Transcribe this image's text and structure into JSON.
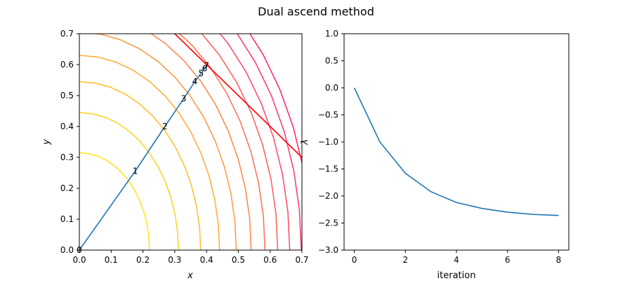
{
  "figure": {
    "title": "Dual ascend method"
  },
  "chart_data": [
    {
      "type": "line",
      "title": "",
      "xlabel": "x",
      "ylabel": "y",
      "xlim": [
        0,
        0.7
      ],
      "ylim": [
        0,
        0.7
      ],
      "xticks": [
        "0.0",
        "0.1",
        "0.2",
        "0.3",
        "0.4",
        "0.5",
        "0.6",
        "0.7"
      ],
      "yticks": [
        "0.0",
        "0.1",
        "0.2",
        "0.3",
        "0.4",
        "0.5",
        "0.6",
        "0.7"
      ],
      "grid": false,
      "contours": {
        "colormap": "autumn_r",
        "levels": [
          0.315,
          0.445,
          0.545,
          0.63,
          0.705,
          0.772,
          0.834,
          0.891,
          0.945,
          0.997,
          1.04
        ]
      },
      "constraint_line": {
        "color": "#ff0000",
        "points": [
          [
            0.3,
            0.7
          ],
          [
            0.7,
            0.3
          ]
        ]
      },
      "series": [
        {
          "color": "#1f77b4",
          "points": [
            [
              0.0,
              0.0
            ],
            [
              0.176,
              0.256
            ],
            [
              0.269,
              0.4
            ],
            [
              0.328,
              0.49
            ],
            [
              0.363,
              0.545
            ],
            [
              0.383,
              0.572
            ],
            [
              0.394,
              0.588
            ],
            [
              0.4,
              0.597
            ]
          ],
          "labels": [
            "0",
            "1",
            "2",
            "3",
            "4",
            "5",
            "6",
            "7"
          ]
        }
      ]
    },
    {
      "type": "line",
      "title": "",
      "xlabel": "iteration",
      "ylabel": "λ",
      "xlim": [
        -0.4,
        8.4
      ],
      "ylim": [
        -3.0,
        1.0
      ],
      "xticks": [
        "0",
        "2",
        "4",
        "6",
        "8"
      ],
      "yticks": [
        "1.0",
        "0.5",
        "0.0",
        "−0.5",
        "−1.0",
        "−1.5",
        "−2.0",
        "−2.5",
        "−3.0"
      ],
      "grid": false,
      "series": [
        {
          "color": "#1f77b4",
          "x": [
            0,
            1,
            2,
            3,
            4,
            5,
            6,
            7,
            8
          ],
          "y": [
            0.0,
            -1.0,
            -1.58,
            -1.92,
            -2.12,
            -2.23,
            -2.3,
            -2.34,
            -2.36
          ]
        }
      ]
    }
  ]
}
